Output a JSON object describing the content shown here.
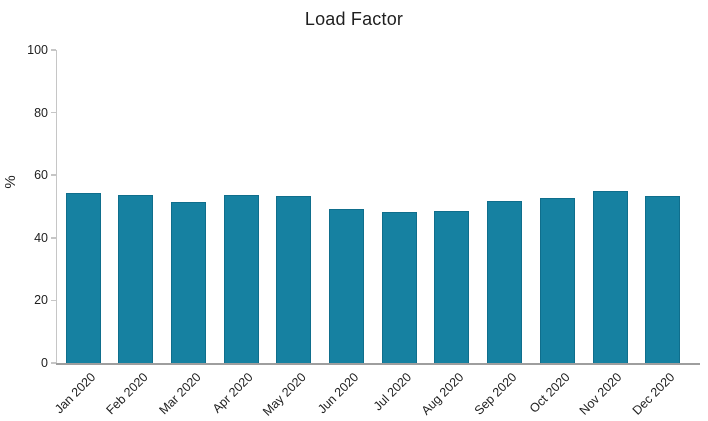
{
  "chart_data": {
    "type": "bar",
    "title": "Load Factor",
    "xlabel": "",
    "ylabel": "%",
    "categories": [
      "Jan 2020",
      "Feb 2020",
      "Mar 2020",
      "Apr 2020",
      "May 2020",
      "Jun 2020",
      "Jul 2020",
      "Aug 2020",
      "Sep 2020",
      "Oct 2020",
      "Nov 2020",
      "Dec 2020"
    ],
    "values": [
      54.3,
      53.7,
      51.5,
      53.8,
      53.3,
      49.3,
      48.1,
      48.7,
      51.6,
      52.8,
      54.8,
      53.3
    ],
    "ylim": [
      0,
      100
    ],
    "yticks": [
      0,
      20,
      40,
      60,
      80,
      100
    ],
    "grid": false,
    "legend": "none",
    "x_tick_label_rotation_deg": 45,
    "colors": {
      "bar_fill": "#1681a1",
      "bar_border": "#0f6e8c",
      "y_axis_line": "#c6c6c6",
      "x_axis_line": "#9e9e9e",
      "text": "#1f1f1f",
      "background": "#ffffff"
    }
  }
}
